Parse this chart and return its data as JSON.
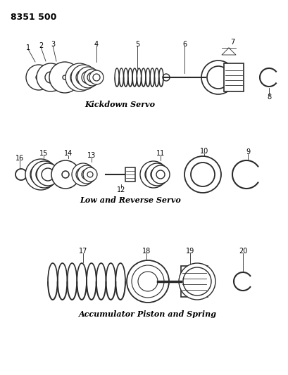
{
  "title_code": "8351 500",
  "section1_label": "Kickdown Servo",
  "section2_label": "Low and Reverse Servo",
  "section3_label": "Accumulator Piston and Spring",
  "bg_color": "#ffffff",
  "line_color": "#2a2a2a",
  "font_color": "#000000",
  "fig_width": 4.1,
  "fig_height": 5.33,
  "dpi": 100
}
